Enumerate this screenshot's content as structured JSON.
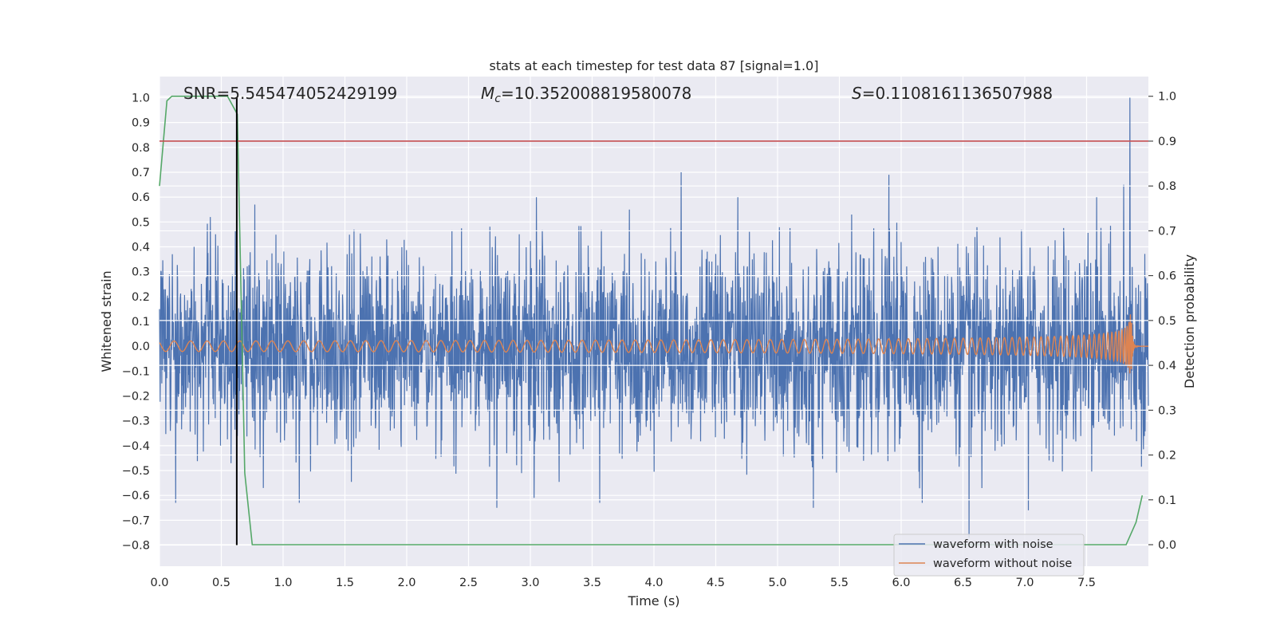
{
  "chart_data": {
    "type": "line",
    "title": "stats at each timestep for test data 87 [signal=1.0]",
    "xlabel": "Time (s)",
    "ylabel": "Whitened strain",
    "y2label": "Detection probability",
    "xlim": [
      0.0,
      8.0
    ],
    "ylim": [
      -0.885,
      1.085
    ],
    "y2lim": [
      -0.048,
      1.044
    ],
    "xticks": [
      0.0,
      0.5,
      1.0,
      1.5,
      2.0,
      2.5,
      3.0,
      3.5,
      4.0,
      4.5,
      5.0,
      5.5,
      6.0,
      6.5,
      7.0,
      7.5
    ],
    "xtick_labels": [
      "0.0",
      "0.5",
      "1.0",
      "1.5",
      "2.0",
      "2.5",
      "3.0",
      "3.5",
      "4.0",
      "4.5",
      "5.0",
      "5.5",
      "6.0",
      "6.5",
      "7.0",
      "7.5"
    ],
    "yticks": [
      1.0,
      0.9,
      0.8,
      0.7,
      0.6,
      0.5,
      0.4,
      0.3,
      0.2,
      0.1,
      0.0,
      -0.1,
      -0.2,
      -0.3,
      -0.4,
      -0.5,
      -0.6,
      -0.7,
      -0.8
    ],
    "ytick_labels": [
      "1.0",
      "0.9",
      "0.8",
      "0.7",
      "0.6",
      "0.5",
      "0.4",
      "0.3",
      "0.2",
      "0.1",
      "0.0",
      "−0.1",
      "−0.2",
      "−0.3",
      "−0.4",
      "−0.5",
      "−0.6",
      "−0.7",
      "−0.8"
    ],
    "y2ticks": [
      1.0,
      0.9,
      0.8,
      0.7,
      0.6,
      0.5,
      0.4,
      0.3,
      0.2,
      0.1,
      0.0
    ],
    "y2tick_labels": [
      "1.0",
      "0.9",
      "0.8",
      "0.7",
      "0.6",
      "0.5",
      "0.4",
      "0.3",
      "0.2",
      "0.1",
      "0.0"
    ],
    "annotations": {
      "snr": "SNR=5.545474052429199",
      "mc_symbol": "M",
      "mc_sub": "c",
      "mc_value": "=10.352008819580078",
      "s_symbol": "S",
      "s_value": "=0.1108161136507988"
    },
    "threshold": {
      "axis": "y2",
      "value": 0.9,
      "color": "#c44e52"
    },
    "event_marker": {
      "x": 0.625,
      "y_from": -0.8,
      "y_to": 1.0,
      "color": "#000000"
    },
    "series": [
      {
        "name": "waveform with noise",
        "axis": "y",
        "color": "#4c72b0",
        "kind": "noise",
        "noise_sigma": 0.19,
        "visible_peaks": [
          {
            "x": 0.28,
            "y": 0.4
          },
          {
            "x": 0.41,
            "y": 0.52
          },
          {
            "x": 0.77,
            "y": 0.57
          },
          {
            "x": 3.05,
            "y": 0.6
          },
          {
            "x": 3.8,
            "y": 0.55
          },
          {
            "x": 4.22,
            "y": 0.7
          },
          {
            "x": 4.68,
            "y": 0.6
          },
          {
            "x": 5.6,
            "y": 0.53
          },
          {
            "x": 5.9,
            "y": 0.69
          },
          {
            "x": 7.58,
            "y": 0.6
          },
          {
            "x": 7.8,
            "y": 0.65
          },
          {
            "x": 7.85,
            "y": 1.0
          },
          {
            "x": 0.13,
            "y": -0.63
          },
          {
            "x": 1.13,
            "y": -0.63
          },
          {
            "x": 2.73,
            "y": -0.65
          },
          {
            "x": 3.03,
            "y": -0.61
          },
          {
            "x": 3.56,
            "y": -0.63
          },
          {
            "x": 5.29,
            "y": -0.65
          },
          {
            "x": 6.17,
            "y": -0.63
          },
          {
            "x": 6.55,
            "y": -0.77
          },
          {
            "x": 7.03,
            "y": -0.66
          }
        ]
      },
      {
        "name": "waveform without noise",
        "axis": "y",
        "color": "#dd8452",
        "kind": "chirp",
        "merger_time": 7.86,
        "peak_amplitude": 0.14
      },
      {
        "name": "Detection probability",
        "axis": "y2",
        "color": "#55a868",
        "x": [
          0.0,
          0.06,
          0.1,
          0.2,
          0.3,
          0.4,
          0.5,
          0.55,
          0.63,
          0.69,
          0.75,
          1.0,
          2.0,
          3.0,
          4.0,
          5.0,
          6.0,
          7.0,
          7.5,
          7.82,
          7.9,
          7.95
        ],
        "values": [
          0.8,
          0.99,
          1.0,
          1.0,
          1.0,
          1.0,
          1.0,
          1.0,
          0.96,
          0.16,
          0.0,
          0.0,
          0.0,
          0.0,
          0.0,
          0.0,
          0.0,
          0.0,
          0.0,
          0.0,
          0.05,
          0.11
        ]
      }
    ],
    "legend": {
      "location": "lower right",
      "entries": [
        "waveform with noise",
        "waveform without noise"
      ]
    },
    "colors": {
      "plot_background": "#eaeaf2",
      "grid": "#ffffff",
      "text": "#262626",
      "legend_border": "#cccccc"
    }
  }
}
